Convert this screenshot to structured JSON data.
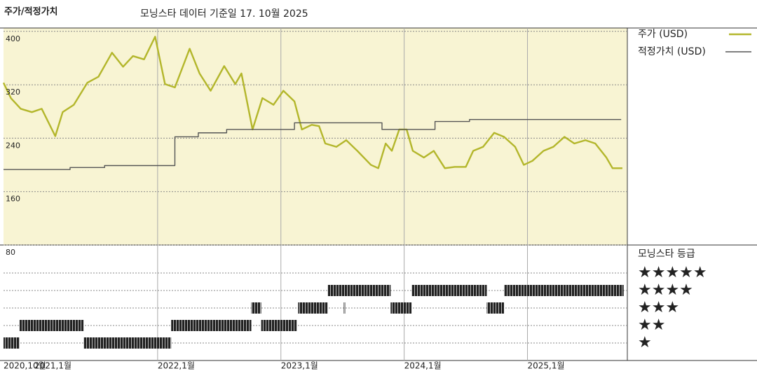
{
  "title": "주가/적정가치",
  "subtitle": "모닝스타 데이터 기준일 17. 10월 2025",
  "chart_data": [
    {
      "type": "line",
      "xlim": [
        2020.75,
        2025.81
      ],
      "xticks": [
        {
          "value": 2020.75,
          "label": "2020,10월"
        },
        {
          "value": 2021,
          "label": "2021,1월"
        },
        {
          "value": 2022,
          "label": "2022,1월"
        },
        {
          "value": 2023,
          "label": "2023,1월"
        },
        {
          "value": 2024,
          "label": "2024,1월"
        },
        {
          "value": 2025,
          "label": "2025,1월"
        }
      ],
      "ylim": [
        80,
        405
      ],
      "yticks": [
        80,
        160,
        240,
        320,
        400
      ],
      "grid": true,
      "series": [
        {
          "name": "주가 (USD)",
          "color": "#b3b62b",
          "x": [
            2020.75,
            2020.81,
            2020.89,
            2020.98,
            2021.06,
            2021.17,
            2021.23,
            2021.32,
            2021.43,
            2021.52,
            2021.63,
            2021.72,
            2021.8,
            2021.89,
            2021.98,
            2022.06,
            2022.14,
            2022.26,
            2022.34,
            2022.43,
            2022.54,
            2022.63,
            2022.68,
            2022.77,
            2022.85,
            2022.94,
            2023.02,
            2023.11,
            2023.17,
            2023.25,
            2023.31,
            2023.36,
            2023.45,
            2023.53,
            2023.62,
            2023.73,
            2023.79,
            2023.85,
            2023.9,
            2023.96,
            2024.02,
            2024.07,
            2024.16,
            2024.24,
            2024.33,
            2024.41,
            2024.5,
            2024.56,
            2024.64,
            2024.73,
            2024.81,
            2024.9,
            2024.97,
            2025.04,
            2025.13,
            2025.21,
            2025.3,
            2025.38,
            2025.47,
            2025.55,
            2025.64,
            2025.69,
            2025.77
          ],
          "values": [
            323,
            300,
            284,
            279,
            284,
            243,
            279,
            290,
            323,
            332,
            368,
            347,
            363,
            358,
            392,
            321,
            316,
            374,
            337,
            311,
            348,
            321,
            337,
            253,
            300,
            290,
            311,
            295,
            253,
            260,
            258,
            232,
            227,
            237,
            221,
            200,
            195,
            232,
            221,
            253,
            253,
            221,
            211,
            221,
            195,
            197,
            197,
            221,
            227,
            248,
            242,
            227,
            200,
            206,
            221,
            227,
            242,
            232,
            237,
            232,
            211,
            195,
            195
          ]
        },
        {
          "name": "적정가치 (USD)",
          "color": "#555555",
          "step": true,
          "x": [
            2020.75,
            2021.29,
            2021.57,
            2022.14,
            2022.33,
            2022.56,
            2023.11,
            2023.82,
            2024.25,
            2024.53,
            2025.76
          ],
          "values": [
            193,
            196,
            199,
            242,
            248,
            253,
            263,
            253,
            265,
            268,
            268
          ]
        }
      ]
    },
    {
      "type": "rating",
      "title": "모닝스타 등급",
      "yticks": [
        {
          "value": 1,
          "label": "★"
        },
        {
          "value": 2,
          "label": "★★"
        },
        {
          "value": 3,
          "label": "★★★"
        },
        {
          "value": 4,
          "label": "★★★★"
        },
        {
          "value": 5,
          "label": "★★★★★"
        }
      ],
      "segments": [
        {
          "start": 2020.75,
          "end": 2020.88,
          "stars": 1
        },
        {
          "start": 2020.88,
          "end": 2021.4,
          "stars": 2
        },
        {
          "start": 2021.4,
          "end": 2022.11,
          "stars": 1
        },
        {
          "start": 2022.11,
          "end": 2022.76,
          "stars": 2
        },
        {
          "start": 2022.76,
          "end": 2022.84,
          "stars": 3
        },
        {
          "start": 2022.84,
          "end": 2023.13,
          "stars": 2
        },
        {
          "start": 2023.14,
          "end": 2023.38,
          "stars": 3
        },
        {
          "start": 2023.38,
          "end": 2023.89,
          "stars": 4
        },
        {
          "start": 2023.51,
          "end": 2023.52,
          "stars": 3
        },
        {
          "start": 2023.89,
          "end": 2024.06,
          "stars": 3
        },
        {
          "start": 2024.06,
          "end": 2024.67,
          "stars": 4
        },
        {
          "start": 2024.67,
          "end": 2024.81,
          "stars": 3
        },
        {
          "start": 2024.81,
          "end": 2025.78,
          "stars": 4
        }
      ]
    }
  ]
}
